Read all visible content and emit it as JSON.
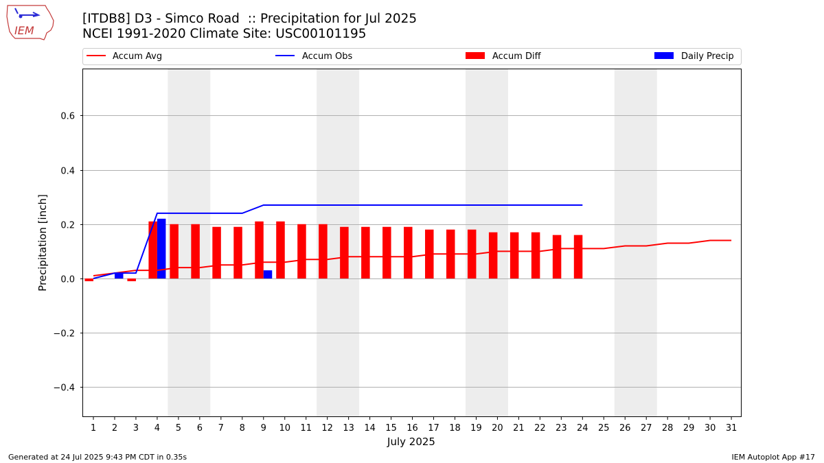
{
  "header": {
    "title_line1": "[ITDB8] D3 - Simco Road  :: Precipitation for Jul 2025",
    "title_line2": "NCEI 1991-2020 Climate Site: USC00101195",
    "logo_text": "IEM"
  },
  "footer": {
    "generated": "Generated at 24 Jul 2025 9:43 PM CDT in 0.35s",
    "app": "IEM Autoplot App #17"
  },
  "colors": {
    "avg": "#ff0000",
    "obs": "#0000ff",
    "diff": "#ff0000",
    "daily": "#0000ff",
    "weekend": "#ededed",
    "grid": "#b0b0b0"
  },
  "chart_data": {
    "type": "bar",
    "xlabel": "July 2025",
    "ylabel": "Precipitation [inch]",
    "ylim": [
      -0.51,
      0.77
    ],
    "yticks": [
      -0.4,
      -0.2,
      0.0,
      0.2,
      0.4,
      0.6
    ],
    "ytick_labels": [
      "−0.4",
      "−0.2",
      "0.0",
      "0.2",
      "0.4",
      "0.6"
    ],
    "grid": true,
    "legend_position": "top",
    "days": [
      1,
      2,
      3,
      4,
      5,
      6,
      7,
      8,
      9,
      10,
      11,
      12,
      13,
      14,
      15,
      16,
      17,
      18,
      19,
      20,
      21,
      22,
      23,
      24,
      25,
      26,
      27,
      28,
      29,
      30,
      31
    ],
    "weekend_ranges": [
      [
        5,
        6
      ],
      [
        12,
        13
      ],
      [
        19,
        20
      ],
      [
        26,
        27
      ]
    ],
    "series": [
      {
        "name": "Accum Avg",
        "kind": "line",
        "values": [
          0.01,
          0.02,
          0.03,
          0.03,
          0.04,
          0.04,
          0.05,
          0.05,
          0.06,
          0.06,
          0.07,
          0.07,
          0.08,
          0.08,
          0.08,
          0.08,
          0.09,
          0.09,
          0.09,
          0.1,
          0.1,
          0.1,
          0.11,
          0.11,
          0.11,
          0.12,
          0.12,
          0.13,
          0.13,
          0.14,
          0.14
        ]
      },
      {
        "name": "Accum Obs",
        "kind": "line",
        "values": [
          0.0,
          0.02,
          0.02,
          0.24,
          0.24,
          0.24,
          0.24,
          0.24,
          0.27,
          0.27,
          0.27,
          0.27,
          0.27,
          0.27,
          0.27,
          0.27,
          0.27,
          0.27,
          0.27,
          0.27,
          0.27,
          0.27,
          0.27,
          0.27
        ]
      },
      {
        "name": "Accum Diff",
        "kind": "bar",
        "values": [
          -0.01,
          0.0,
          -0.01,
          0.21,
          0.2,
          0.2,
          0.19,
          0.19,
          0.21,
          0.21,
          0.2,
          0.2,
          0.19,
          0.19,
          0.19,
          0.19,
          0.18,
          0.18,
          0.18,
          0.17,
          0.17,
          0.17,
          0.16,
          0.16
        ]
      },
      {
        "name": "Daily Precip",
        "kind": "bar",
        "values": [
          0.0,
          0.02,
          0.0,
          0.22,
          0.0,
          0.0,
          0.0,
          0.0,
          0.03,
          0.0,
          0.0,
          0.0,
          0.0,
          0.0,
          0.0,
          0.0,
          0.0,
          0.0,
          0.0,
          0.0,
          0.0,
          0.0,
          0.0,
          0.0
        ]
      }
    ]
  }
}
